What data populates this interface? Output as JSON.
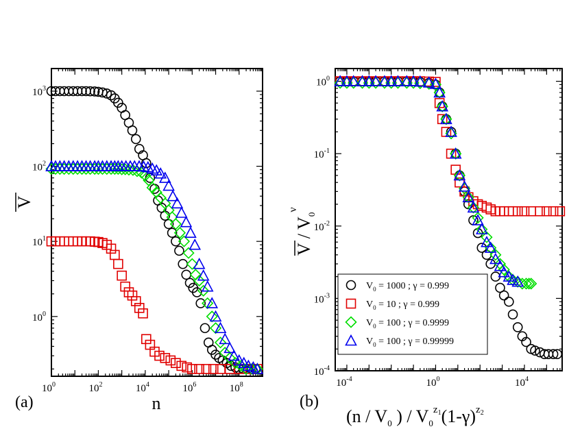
{
  "chart_data": [
    {
      "type": "scatter",
      "panel_label": "(a)",
      "xlabel": "n",
      "ylabel": "V",
      "xscale": "log",
      "yscale": "log",
      "xlim": [
        1,
        1000000000.0
      ],
      "ylim": [
        0.16,
        2000
      ],
      "xticks": [
        {
          "base": "10",
          "exp": "0"
        },
        {
          "base": "10",
          "exp": "2"
        },
        {
          "base": "10",
          "exp": "4"
        },
        {
          "base": "10",
          "exp": "6"
        },
        {
          "base": "10",
          "exp": "8"
        }
      ],
      "yticks": [
        {
          "base": "10",
          "exp": "0"
        },
        {
          "base": "10",
          "exp": "1"
        },
        {
          "base": "10",
          "exp": "2"
        },
        {
          "base": "10",
          "exp": "3"
        }
      ],
      "series": [
        {
          "marker": "circle",
          "color": "#000000",
          "x": [
            1,
            1.5,
            2.3,
            3.5,
            5.5,
            8.5,
            13,
            20,
            30,
            45,
            70,
            100,
            150,
            230,
            350,
            500,
            700,
            1000,
            1400,
            2000,
            2800,
            4000,
            5600,
            8000,
            11000,
            16000,
            25000,
            35000,
            50000,
            70000,
            100000,
            140000,
            200000,
            280000,
            400000,
            560000,
            800000,
            1100000,
            1600000,
            2300000,
            3500000,
            5000000,
            7000000,
            10000000,
            14000000,
            20000000,
            30000000,
            45000000,
            70000000,
            100000000,
            150000000,
            230000000,
            350000000,
            500000000
          ],
          "y": [
            1000,
            1000,
            1000,
            1000,
            1000,
            1000,
            1000,
            1000,
            1000,
            995,
            990,
            980,
            960,
            930,
            880,
            800,
            700,
            600,
            480,
            380,
            300,
            230,
            170,
            140,
            110,
            70,
            50,
            35,
            28,
            22,
            17,
            13,
            10,
            7.5,
            5,
            3.6,
            2.8,
            2.4,
            2.1,
            1.5,
            0.7,
            0.45,
            0.36,
            0.31,
            0.28,
            0.26,
            0.24,
            0.22,
            0.21,
            0.2,
            0.2,
            0.2,
            0.2,
            0.2
          ]
        },
        {
          "marker": "square",
          "color": "#e00000",
          "x": [
            1,
            1.5,
            2.3,
            3.5,
            5.5,
            8.5,
            13,
            20,
            30,
            45,
            70,
            100,
            150,
            230,
            350,
            500,
            700,
            1000,
            1400,
            2000,
            2800,
            4000,
            5600,
            8000,
            11000,
            16000,
            25000,
            40000,
            70000,
            120000,
            200000,
            350000,
            600000,
            1000000,
            2000000,
            4000000,
            8000000,
            16000000,
            40000000,
            100000000,
            300000000,
            600000000
          ],
          "y": [
            10,
            10,
            10,
            10,
            10,
            10,
            10,
            10,
            10,
            10,
            9.9,
            9.8,
            9.5,
            9,
            8,
            6.6,
            5,
            3.5,
            2.5,
            2.1,
            1.9,
            1.6,
            1.3,
            1.1,
            0.5,
            0.42,
            0.34,
            0.3,
            0.28,
            0.26,
            0.24,
            0.22,
            0.21,
            0.2,
            0.2,
            0.2,
            0.2,
            0.2,
            0.2,
            0.2,
            0.2,
            0.2
          ]
        },
        {
          "marker": "diamond",
          "color": "#00dd00",
          "x": [
            1,
            1.5,
            2.3,
            3.5,
            5.5,
            8.5,
            13,
            20,
            30,
            45,
            70,
            100,
            150,
            230,
            350,
            500,
            700,
            1000,
            1400,
            2000,
            3000,
            4500,
            7000,
            10000,
            14000,
            20000,
            30000,
            45000,
            70000,
            100000,
            140000,
            200000,
            300000,
            450000,
            700000,
            1000000,
            1400000,
            2000000,
            3000000,
            4500000,
            7000000,
            10000000,
            16000000,
            25000000,
            40000000,
            70000000,
            120000000,
            200000000,
            350000000,
            600000000
          ],
          "y": [
            92,
            92,
            92,
            92,
            92,
            92,
            92,
            92,
            92,
            92,
            92,
            92,
            92,
            92,
            92,
            92,
            92,
            91,
            91,
            90,
            89,
            86,
            82,
            75,
            65,
            52,
            45,
            38,
            32,
            26,
            21,
            17,
            13,
            10,
            7,
            5,
            3.6,
            3,
            2.2,
            1.5,
            1.0,
            0.7,
            0.45,
            0.33,
            0.28,
            0.24,
            0.22,
            0.2,
            0.2,
            0.2
          ]
        },
        {
          "marker": "triangle",
          "color": "#0000ee",
          "x": [
            1,
            1.5,
            2.3,
            3.5,
            5.5,
            8.5,
            13,
            20,
            30,
            45,
            70,
            100,
            150,
            230,
            350,
            500,
            700,
            1000,
            1500,
            2300,
            3500,
            5500,
            8500,
            13000,
            20000,
            30000,
            45000,
            70000,
            100000,
            150000,
            230000,
            350000,
            550000,
            850000,
            1300000,
            2000000,
            3000000,
            4500000,
            7000000,
            10000000,
            16000000,
            25000000,
            40000000,
            60000000,
            100000000,
            160000000,
            250000000,
            400000000,
            600000000
          ],
          "y": [
            100,
            100,
            100,
            100,
            100,
            100,
            100,
            100,
            100,
            100,
            100,
            100,
            100,
            100,
            100,
            100,
            100,
            100,
            100,
            100,
            100,
            100,
            99,
            97,
            93,
            88,
            80,
            70,
            55,
            40,
            32,
            24,
            18,
            13,
            9,
            5,
            3.5,
            2.5,
            1.5,
            1.0,
            0.7,
            0.5,
            0.38,
            0.3,
            0.26,
            0.24,
            0.22,
            0.21,
            0.2
          ]
        }
      ]
    },
    {
      "type": "scatter",
      "panel_label": "(b)",
      "xlabel": "(n / V0) / V0^z1 (1-γ)^z2",
      "ylabel": "V / V0^ν",
      "xscale": "log",
      "yscale": "log",
      "xlim": [
        3e-05,
        500000
      ],
      "ylim": [
        0.0001,
        1.5
      ],
      "xticks": [
        {
          "base": "10",
          "exp": "-4"
        },
        {
          "base": "10",
          "exp": "0"
        },
        {
          "base": "10",
          "exp": "4"
        }
      ],
      "yticks": [
        {
          "base": "10",
          "exp": "-4"
        },
        {
          "base": "10",
          "exp": "-3"
        },
        {
          "base": "10",
          "exp": "-2"
        },
        {
          "base": "10",
          "exp": "-1"
        },
        {
          "base": "10",
          "exp": "0"
        }
      ],
      "legend": {
        "placement": "bottom-left",
        "entries": [
          {
            "v0": "1000",
            "gamma": "0.999"
          },
          {
            "v0": "10",
            "gamma": "0.999"
          },
          {
            "v0": "100",
            "gamma": "0.9999"
          },
          {
            "v0": "100",
            "gamma": "0.99999"
          }
        ]
      },
      "series": [
        {
          "marker": "circle",
          "color": "#000000",
          "x": [
            5e-05,
            0.0001,
            0.0002,
            0.0005,
            0.001,
            0.002,
            0.005,
            0.01,
            0.02,
            0.05,
            0.1,
            0.2,
            0.5,
            1,
            1.5,
            2,
            3,
            5,
            8,
            12,
            20,
            30,
            50,
            80,
            120,
            200,
            300,
            500,
            800,
            1200,
            2000,
            3000,
            5000,
            8000,
            12000,
            20000,
            30000,
            50000,
            80000,
            120000,
            200000,
            300000
          ],
          "y": [
            1,
            1,
            1,
            1,
            1,
            1,
            1,
            1,
            1,
            1,
            1,
            0.98,
            0.95,
            0.9,
            0.7,
            0.45,
            0.3,
            0.2,
            0.1,
            0.05,
            0.03,
            0.02,
            0.012,
            0.008,
            0.005,
            0.004,
            0.003,
            0.002,
            0.0014,
            0.0011,
            0.0009,
            0.0006,
            0.0004,
            0.0003,
            0.00025,
            0.0002,
            0.00019,
            0.00018,
            0.00017,
            0.00017,
            0.00017,
            0.00017
          ]
        },
        {
          "marker": "square",
          "color": "#e00000",
          "x": [
            5e-05,
            0.0001,
            0.0002,
            0.0005,
            0.001,
            0.002,
            0.005,
            0.01,
            0.02,
            0.05,
            0.1,
            0.2,
            0.5,
            1,
            1.5,
            2,
            3,
            5,
            8,
            12,
            20,
            30,
            50,
            80,
            120,
            200,
            300,
            500,
            800,
            1200,
            2000,
            3000,
            5000,
            10000,
            20000,
            50000,
            100000,
            200000,
            400000
          ],
          "y": [
            1,
            1,
            1,
            1,
            1,
            1,
            1,
            1,
            1,
            1,
            1,
            1,
            0.99,
            0.98,
            0.5,
            0.3,
            0.2,
            0.1,
            0.06,
            0.04,
            0.03,
            0.025,
            0.022,
            0.02,
            0.019,
            0.018,
            0.017,
            0.016,
            0.016,
            0.016,
            0.016,
            0.016,
            0.016,
            0.016,
            0.016,
            0.016,
            0.016,
            0.016,
            0.016
          ]
        },
        {
          "marker": "diamond",
          "color": "#00dd00",
          "x": [
            5e-05,
            0.0001,
            0.0002,
            0.0005,
            0.001,
            0.002,
            0.005,
            0.01,
            0.02,
            0.05,
            0.1,
            0.2,
            0.5,
            1,
            1.5,
            2,
            3,
            5,
            8,
            12,
            20,
            30,
            50,
            80,
            120,
            200,
            300,
            500,
            800,
            1200,
            2000,
            3000,
            5000,
            8000,
            12000,
            16000,
            20000
          ],
          "y": [
            0.95,
            0.95,
            0.95,
            0.95,
            0.95,
            0.95,
            0.95,
            0.95,
            0.95,
            0.95,
            0.95,
            0.94,
            0.92,
            0.9,
            0.7,
            0.45,
            0.3,
            0.19,
            0.1,
            0.05,
            0.033,
            0.025,
            0.018,
            0.013,
            0.009,
            0.007,
            0.005,
            0.004,
            0.003,
            0.0025,
            0.002,
            0.0018,
            0.0017,
            0.0016,
            0.0016,
            0.0016,
            0.0016
          ]
        },
        {
          "marker": "triangle",
          "color": "#0000ee",
          "x": [
            5e-05,
            0.0001,
            0.0002,
            0.0005,
            0.001,
            0.002,
            0.005,
            0.01,
            0.02,
            0.05,
            0.1,
            0.2,
            0.5,
            1,
            1.5,
            2,
            3,
            5,
            8,
            12,
            20,
            30,
            50,
            80,
            120,
            200,
            300,
            500,
            800,
            1200,
            2000,
            3000,
            5000
          ],
          "y": [
            1,
            1,
            1,
            1,
            1,
            1,
            1,
            1,
            1,
            1,
            1,
            0.99,
            0.96,
            0.92,
            0.7,
            0.45,
            0.3,
            0.2,
            0.1,
            0.05,
            0.035,
            0.025,
            0.018,
            0.012,
            0.009,
            0.006,
            0.005,
            0.0035,
            0.0028,
            0.0023,
            0.002,
            0.0018,
            0.0017
          ]
        }
      ]
    }
  ]
}
